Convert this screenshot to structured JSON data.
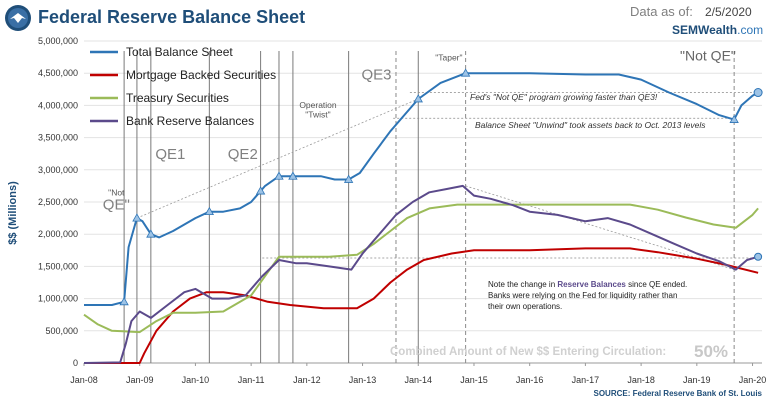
{
  "header": {
    "title": "Federal Reserve Balance Sheet",
    "asof_label": "Data as of:",
    "asof_value": "2/5/2020",
    "brand_name": "SEMWealth",
    "brand_suffix": ".com"
  },
  "chart_data": {
    "type": "line",
    "title": "Federal Reserve Balance Sheet",
    "ylabel": "$$ (Millions)",
    "ylim": [
      0,
      5000000
    ],
    "yticks": [
      0,
      500000,
      1000000,
      1500000,
      2000000,
      2500000,
      3000000,
      3500000,
      4000000,
      4500000,
      5000000
    ],
    "ytick_labels": [
      "0",
      "500,000",
      "1,000,000",
      "1,500,000",
      "2,000,000",
      "2,500,000",
      "3,000,000",
      "3,500,000",
      "4,000,000",
      "4,500,000",
      "5,000,000"
    ],
    "xlim": [
      2008.0,
      2020.17
    ],
    "xticks": [
      2008,
      2009,
      2010,
      2011,
      2012,
      2013,
      2014,
      2015,
      2016,
      2017,
      2018,
      2019,
      2020
    ],
    "xtick_labels": [
      "Jan-08",
      "Jan-09",
      "Jan-10",
      "Jan-11",
      "Jan-12",
      "Jan-13",
      "Jan-14",
      "Jan-15",
      "Jan-16",
      "Jan-17",
      "Jan-18",
      "Jan-19",
      "Jan-20"
    ],
    "series": [
      {
        "name": "Total Balance Sheet",
        "color": "#2e75b6",
        "points": [
          [
            2008.0,
            900000
          ],
          [
            2008.5,
            900000
          ],
          [
            2008.72,
            950000
          ],
          [
            2008.8,
            1800000
          ],
          [
            2008.95,
            2250000
          ],
          [
            2009.05,
            2200000
          ],
          [
            2009.2,
            2000000
          ],
          [
            2009.35,
            1950000
          ],
          [
            2009.6,
            2050000
          ],
          [
            2010.0,
            2250000
          ],
          [
            2010.25,
            2350000
          ],
          [
            2010.5,
            2350000
          ],
          [
            2010.8,
            2400000
          ],
          [
            2011.0,
            2500000
          ],
          [
            2011.25,
            2750000
          ],
          [
            2011.5,
            2900000
          ],
          [
            2011.75,
            2900000
          ],
          [
            2012.0,
            2900000
          ],
          [
            2012.25,
            2900000
          ],
          [
            2012.5,
            2850000
          ],
          [
            2012.75,
            2850000
          ],
          [
            2012.95,
            2950000
          ],
          [
            2013.2,
            3250000
          ],
          [
            2013.5,
            3600000
          ],
          [
            2013.75,
            3850000
          ],
          [
            2014.0,
            4100000
          ],
          [
            2014.4,
            4350000
          ],
          [
            2014.85,
            4500000
          ],
          [
            2015.2,
            4500000
          ],
          [
            2016.0,
            4500000
          ],
          [
            2017.0,
            4480000
          ],
          [
            2017.6,
            4480000
          ],
          [
            2018.0,
            4400000
          ],
          [
            2018.5,
            4200000
          ],
          [
            2019.0,
            4020000
          ],
          [
            2019.4,
            3850000
          ],
          [
            2019.67,
            3780000
          ],
          [
            2019.8,
            4000000
          ],
          [
            2020.0,
            4150000
          ],
          [
            2020.1,
            4200000
          ]
        ]
      },
      {
        "name": "Mortgage Backed Securities",
        "color": "#c00000",
        "points": [
          [
            2008.0,
            0
          ],
          [
            2009.0,
            0
          ],
          [
            2009.08,
            150000
          ],
          [
            2009.3,
            500000
          ],
          [
            2009.6,
            800000
          ],
          [
            2009.9,
            1000000
          ],
          [
            2010.2,
            1100000
          ],
          [
            2010.5,
            1100000
          ],
          [
            2010.9,
            1050000
          ],
          [
            2011.3,
            950000
          ],
          [
            2011.7,
            900000
          ],
          [
            2012.3,
            850000
          ],
          [
            2012.9,
            850000
          ],
          [
            2013.2,
            1000000
          ],
          [
            2013.5,
            1250000
          ],
          [
            2013.8,
            1450000
          ],
          [
            2014.1,
            1600000
          ],
          [
            2014.6,
            1700000
          ],
          [
            2015.0,
            1750000
          ],
          [
            2016.0,
            1750000
          ],
          [
            2017.0,
            1780000
          ],
          [
            2017.8,
            1780000
          ],
          [
            2018.3,
            1720000
          ],
          [
            2019.0,
            1620000
          ],
          [
            2019.5,
            1530000
          ],
          [
            2020.1,
            1400000
          ]
        ]
      },
      {
        "name": "Treasury Securities",
        "color": "#9bbb59",
        "points": [
          [
            2008.0,
            750000
          ],
          [
            2008.25,
            600000
          ],
          [
            2008.5,
            500000
          ],
          [
            2009.0,
            480000
          ],
          [
            2009.3,
            650000
          ],
          [
            2009.6,
            780000
          ],
          [
            2010.0,
            780000
          ],
          [
            2010.5,
            800000
          ],
          [
            2011.0,
            1050000
          ],
          [
            2011.25,
            1350000
          ],
          [
            2011.5,
            1650000
          ],
          [
            2011.8,
            1650000
          ],
          [
            2012.4,
            1650000
          ],
          [
            2012.9,
            1680000
          ],
          [
            2013.2,
            1850000
          ],
          [
            2013.5,
            2050000
          ],
          [
            2013.8,
            2250000
          ],
          [
            2014.2,
            2400000
          ],
          [
            2014.7,
            2460000
          ],
          [
            2015.0,
            2460000
          ],
          [
            2016.0,
            2460000
          ],
          [
            2017.0,
            2460000
          ],
          [
            2017.8,
            2460000
          ],
          [
            2018.3,
            2380000
          ],
          [
            2018.8,
            2260000
          ],
          [
            2019.3,
            2150000
          ],
          [
            2019.7,
            2100000
          ],
          [
            2020.0,
            2300000
          ],
          [
            2020.1,
            2400000
          ]
        ]
      },
      {
        "name": "Bank Reserve Balances",
        "color": "#5b4a8b",
        "points": [
          [
            2008.0,
            0
          ],
          [
            2008.65,
            10000
          ],
          [
            2008.75,
            300000
          ],
          [
            2008.85,
            650000
          ],
          [
            2009.0,
            800000
          ],
          [
            2009.2,
            700000
          ],
          [
            2009.5,
            900000
          ],
          [
            2009.8,
            1100000
          ],
          [
            2010.0,
            1150000
          ],
          [
            2010.3,
            1000000
          ],
          [
            2010.6,
            1000000
          ],
          [
            2010.9,
            1050000
          ],
          [
            2011.2,
            1350000
          ],
          [
            2011.5,
            1600000
          ],
          [
            2011.8,
            1550000
          ],
          [
            2012.0,
            1550000
          ],
          [
            2012.4,
            1500000
          ],
          [
            2012.8,
            1450000
          ],
          [
            2013.0,
            1700000
          ],
          [
            2013.3,
            2000000
          ],
          [
            2013.6,
            2300000
          ],
          [
            2013.9,
            2500000
          ],
          [
            2014.2,
            2650000
          ],
          [
            2014.5,
            2700000
          ],
          [
            2014.8,
            2750000
          ],
          [
            2015.0,
            2600000
          ],
          [
            2015.3,
            2550000
          ],
          [
            2015.7,
            2450000
          ],
          [
            2016.0,
            2350000
          ],
          [
            2016.5,
            2300000
          ],
          [
            2017.0,
            2200000
          ],
          [
            2017.4,
            2250000
          ],
          [
            2017.8,
            2150000
          ],
          [
            2018.2,
            2000000
          ],
          [
            2018.6,
            1850000
          ],
          [
            2019.0,
            1700000
          ],
          [
            2019.4,
            1580000
          ],
          [
            2019.7,
            1450000
          ],
          [
            2019.9,
            1600000
          ],
          [
            2020.1,
            1650000
          ]
        ]
      }
    ],
    "legend": {
      "placement": "top-left",
      "entries": [
        "Total Balance Sheet",
        "Mortgage Backed Securities",
        "Treasury Securities",
        "Bank Reserve Balances"
      ]
    },
    "vertical_markers": [
      2008.72,
      2008.95,
      2009.2,
      2010.25,
      2011.17,
      2011.5,
      2011.75,
      2012.75,
      2014.0,
      2014.85,
      2019.67
    ],
    "dashed_markers": [
      2013.6,
      2014.85,
      2019.67
    ],
    "period_labels": [
      {
        "text": "\"Not",
        "x": 2008.58,
        "y": 2600000
      },
      {
        "text": "QE\"",
        "x": 2008.58,
        "y": 2380000
      },
      {
        "text": "QE1",
        "x": 2009.55,
        "y": 3170000
      },
      {
        "text": "QE2",
        "x": 2010.85,
        "y": 3170000
      },
      {
        "text": "Operation",
        "x": 2012.2,
        "y": 3960000
      },
      {
        "text": "\"Twist\"",
        "x": 2012.2,
        "y": 3810000
      },
      {
        "text": "QE3",
        "x": 2013.25,
        "y": 4400000
      },
      {
        "text": "\"Taper\"",
        "x": 2014.55,
        "y": 4700000
      },
      {
        "text": "\"Not QE\"",
        "x": 2019.2,
        "y": 4700000
      }
    ],
    "reference_lines": [
      {
        "y": 4200000,
        "x0": 2013.85,
        "x1": 2020.1
      },
      {
        "y": 3800000,
        "x0": 2013.55,
        "x1": 2019.7
      },
      {
        "y": 1630000,
        "x0": 2011.2,
        "x1": 2020.1
      }
    ],
    "trend_lines": [
      {
        "points": [
          [
            2008.95,
            2250000
          ],
          [
            2014.0,
            4100000
          ]
        ]
      },
      {
        "points": [
          [
            2014.85,
            2750000
          ],
          [
            2019.67,
            1450000
          ]
        ]
      }
    ],
    "annotations": {
      "fed_not_qe": "Fed's \"Not QE\" program growing faster than QE3!",
      "unwind": "Balance Sheet \"Unwind\" took assets back to Oct. 2013 levels",
      "note_prefix": "Note the change in ",
      "note_highlight": "Reserve Balances",
      "note_suffix": " since QE ended.",
      "note_line2": "Banks were relying on the Fed for liquidity rather than",
      "note_line3": "their own operations.",
      "combined": "Combined Amount of New $$ Entering Circulation:",
      "combined_pct": "50%",
      "source": "SOURCE:  Federal Reserve Bank of St. Louis"
    }
  }
}
